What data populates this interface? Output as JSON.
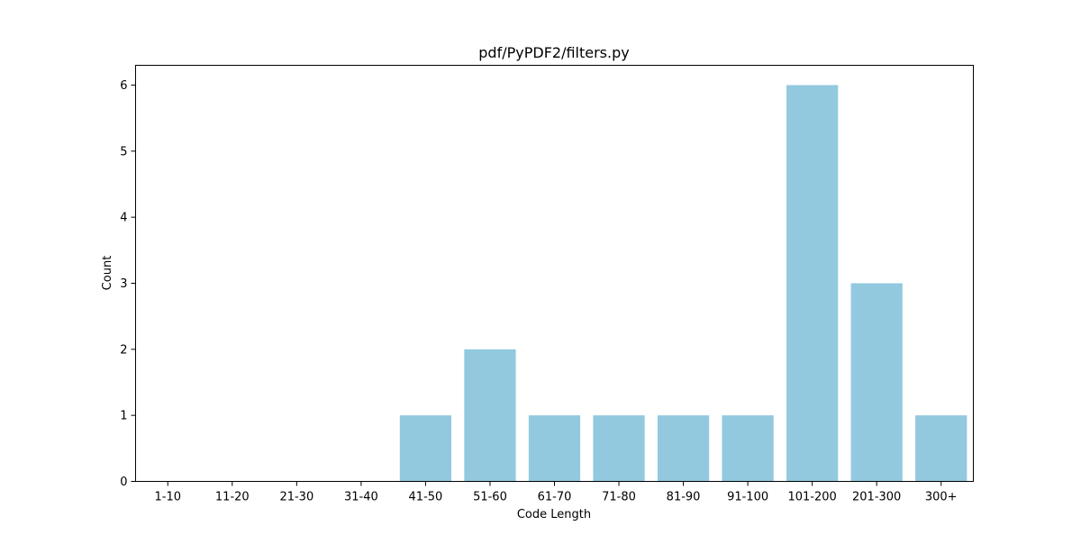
{
  "chart_data": {
    "type": "bar",
    "title": "pdf/PyPDF2/filters.py",
    "xlabel": "Code Length",
    "ylabel": "Count",
    "categories": [
      "1-10",
      "11-20",
      "21-30",
      "31-40",
      "41-50",
      "51-60",
      "61-70",
      "71-80",
      "81-90",
      "91-100",
      "101-200",
      "201-300",
      "300+"
    ],
    "values": [
      0,
      0,
      0,
      0,
      1,
      2,
      1,
      1,
      1,
      1,
      6,
      3,
      1
    ],
    "ylim": [
      0,
      6.3
    ],
    "yticks": [
      0,
      1,
      2,
      3,
      4,
      5,
      6
    ],
    "grid": false,
    "legend": "none",
    "bar_color": "#92c9df"
  }
}
